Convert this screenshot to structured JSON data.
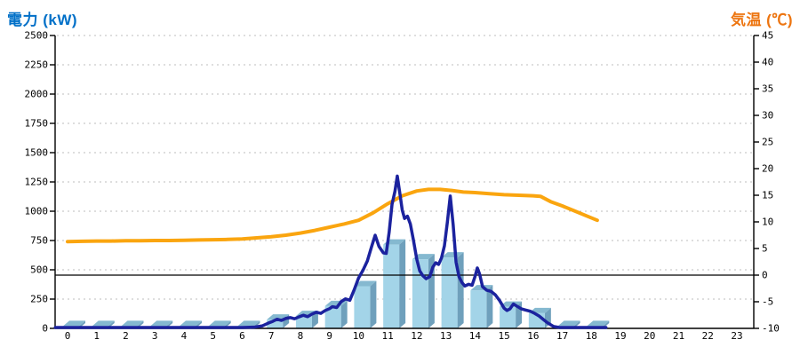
{
  "chart_data": {
    "type": "combo-bar-line",
    "title_left": "電力 (kW)",
    "title_right": "気温 (℃)",
    "colors": {
      "power_title": "#0070C8",
      "temp_title": "#ED7510",
      "bar_front": "#A3D4E8",
      "bar_top": "#85B9D0",
      "bar_side": "#6FA0BC",
      "power_line": "#1B229E",
      "temp_line": "#FAA50F",
      "gridline": "#BDBDBD",
      "axis": "#000000",
      "zero_temp_line": "#000000"
    },
    "y_left": {
      "label": "電力 (kW)",
      "min": 0,
      "max": 2500,
      "tick_interval": 250,
      "tick_labels": [
        "0",
        "250",
        "500",
        "750",
        "1000",
        "1250",
        "1500",
        "1750",
        "2000",
        "2250",
        "2500"
      ]
    },
    "y_right": {
      "label": "気温 (℃)",
      "min": -10,
      "max": 45,
      "tick_interval": 5,
      "tick_labels": [
        "-10",
        "-5",
        "0",
        "5",
        "10",
        "15",
        "20",
        "25",
        "30",
        "35",
        "40",
        "45"
      ]
    },
    "x_axis": {
      "tick_labels": [
        "0",
        "1",
        "2",
        "3",
        "4",
        "5",
        "6",
        "7",
        "8",
        "9",
        "10",
        "11",
        "12",
        "13",
        "14",
        "15",
        "16",
        "17",
        "18",
        "19",
        "20",
        "21",
        "22",
        "23"
      ]
    },
    "reference_line": {
      "axis": "right",
      "value": 0
    },
    "grid": "dashed horizontal every 250 kW",
    "bars": {
      "unit": "kW",
      "hours": [
        0,
        1,
        2,
        3,
        4,
        5,
        6,
        7,
        8,
        9,
        10,
        11,
        12,
        13,
        14,
        15,
        16,
        17,
        18
      ],
      "values": [
        20,
        20,
        20,
        20,
        20,
        20,
        20,
        75,
        105,
        190,
        360,
        715,
        590,
        605,
        325,
        185,
        130,
        20,
        20
      ]
    },
    "power_line": {
      "unit": "kW",
      "points": [
        [
          -0.42,
          8
        ],
        [
          0,
          8
        ],
        [
          0.5,
          8
        ],
        [
          1,
          8
        ],
        [
          1.5,
          8
        ],
        [
          2,
          8
        ],
        [
          2.5,
          8
        ],
        [
          3,
          8
        ],
        [
          3.5,
          8
        ],
        [
          4,
          8
        ],
        [
          4.5,
          8
        ],
        [
          5,
          8
        ],
        [
          5.5,
          8
        ],
        [
          6,
          8
        ],
        [
          6.4,
          10
        ],
        [
          6.7,
          22
        ],
        [
          6.9,
          45
        ],
        [
          7.05,
          60
        ],
        [
          7.2,
          78
        ],
        [
          7.35,
          68
        ],
        [
          7.5,
          85
        ],
        [
          7.65,
          92
        ],
        [
          7.8,
          82
        ],
        [
          7.95,
          98
        ],
        [
          8.1,
          112
        ],
        [
          8.25,
          100
        ],
        [
          8.4,
          122
        ],
        [
          8.55,
          138
        ],
        [
          8.7,
          128
        ],
        [
          8.85,
          152
        ],
        [
          9.0,
          168
        ],
        [
          9.1,
          185
        ],
        [
          9.25,
          178
        ],
        [
          9.4,
          228
        ],
        [
          9.55,
          252
        ],
        [
          9.7,
          240
        ],
        [
          9.85,
          330
        ],
        [
          10.0,
          430
        ],
        [
          10.15,
          495
        ],
        [
          10.3,
          575
        ],
        [
          10.45,
          700
        ],
        [
          10.57,
          795
        ],
        [
          10.7,
          700
        ],
        [
          10.85,
          645
        ],
        [
          10.95,
          640
        ],
        [
          11.05,
          820
        ],
        [
          11.15,
          1060
        ],
        [
          11.25,
          1170
        ],
        [
          11.33,
          1300
        ],
        [
          11.42,
          1150
        ],
        [
          11.5,
          1010
        ],
        [
          11.58,
          938
        ],
        [
          11.68,
          958
        ],
        [
          11.78,
          890
        ],
        [
          11.88,
          760
        ],
        [
          12.0,
          590
        ],
        [
          12.1,
          492
        ],
        [
          12.2,
          452
        ],
        [
          12.32,
          424
        ],
        [
          12.45,
          442
        ],
        [
          12.55,
          522
        ],
        [
          12.65,
          560
        ],
        [
          12.75,
          546
        ],
        [
          12.85,
          602
        ],
        [
          12.95,
          705
        ],
        [
          13.05,
          905
        ],
        [
          13.15,
          1130
        ],
        [
          13.25,
          885
        ],
        [
          13.35,
          565
        ],
        [
          13.45,
          442
        ],
        [
          13.55,
          392
        ],
        [
          13.65,
          362
        ],
        [
          13.78,
          376
        ],
        [
          13.9,
          368
        ],
        [
          14.0,
          442
        ],
        [
          14.08,
          516
        ],
        [
          14.16,
          462
        ],
        [
          14.26,
          356
        ],
        [
          14.4,
          326
        ],
        [
          14.55,
          316
        ],
        [
          14.7,
          286
        ],
        [
          14.85,
          236
        ],
        [
          15.0,
          172
        ],
        [
          15.1,
          153
        ],
        [
          15.2,
          166
        ],
        [
          15.32,
          208
        ],
        [
          15.45,
          188
        ],
        [
          15.6,
          166
        ],
        [
          15.75,
          156
        ],
        [
          15.9,
          146
        ],
        [
          16.05,
          128
        ],
        [
          16.2,
          106
        ],
        [
          16.35,
          76
        ],
        [
          16.5,
          46
        ],
        [
          16.7,
          16
        ],
        [
          16.9,
          8
        ],
        [
          17.3,
          8
        ],
        [
          17.8,
          8
        ],
        [
          18.3,
          8
        ],
        [
          18.5,
          8
        ]
      ]
    },
    "temp_line": {
      "unit": "°C",
      "points": [
        [
          0,
          6.3
        ],
        [
          0.5,
          6.35
        ],
        [
          1,
          6.4
        ],
        [
          1.5,
          6.4
        ],
        [
          2,
          6.45
        ],
        [
          2.5,
          6.45
        ],
        [
          3,
          6.5
        ],
        [
          3.5,
          6.5
        ],
        [
          4,
          6.55
        ],
        [
          4.5,
          6.6
        ],
        [
          5,
          6.65
        ],
        [
          5.5,
          6.7
        ],
        [
          6,
          6.8
        ],
        [
          6.5,
          7.0
        ],
        [
          7,
          7.2
        ],
        [
          7.5,
          7.5
        ],
        [
          8,
          7.9
        ],
        [
          8.5,
          8.4
        ],
        [
          9,
          9.0
        ],
        [
          9.5,
          9.6
        ],
        [
          10,
          10.3
        ],
        [
          10.5,
          11.7
        ],
        [
          11,
          13.4
        ],
        [
          11.5,
          14.9
        ],
        [
          12,
          15.8
        ],
        [
          12.4,
          16.1
        ],
        [
          12.8,
          16.1
        ],
        [
          13.2,
          15.9
        ],
        [
          13.6,
          15.6
        ],
        [
          14,
          15.5
        ],
        [
          14.5,
          15.3
        ],
        [
          15,
          15.1
        ],
        [
          15.5,
          15.0
        ],
        [
          16,
          14.9
        ],
        [
          16.25,
          14.8
        ],
        [
          16.6,
          13.8
        ],
        [
          17,
          13.0
        ],
        [
          17.4,
          12.1
        ],
        [
          17.8,
          11.2
        ],
        [
          18.2,
          10.3
        ]
      ]
    }
  }
}
